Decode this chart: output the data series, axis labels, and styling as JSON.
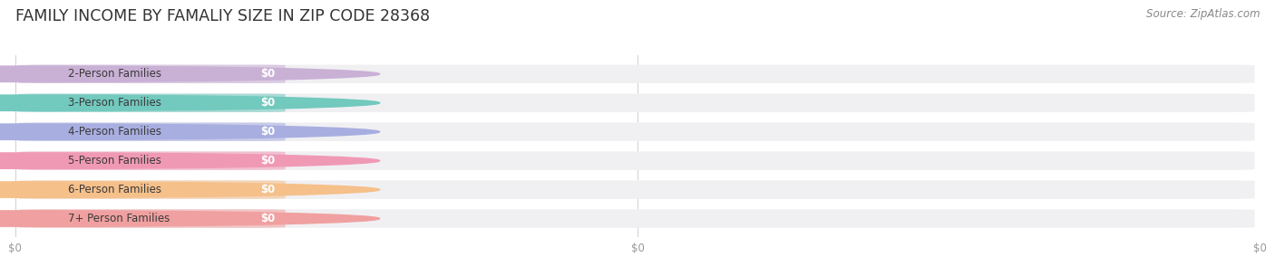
{
  "title": "FAMILY INCOME BY FAMALIY SIZE IN ZIP CODE 28368",
  "source_text": "Source: ZipAtlas.com",
  "categories": [
    "2-Person Families",
    "3-Person Families",
    "4-Person Families",
    "5-Person Families",
    "6-Person Families",
    "7+ Person Families"
  ],
  "values": [
    0,
    0,
    0,
    0,
    0,
    0
  ],
  "bar_colors": [
    "#c9b0d5",
    "#72c9be",
    "#a8aee0",
    "#f099b5",
    "#f5c08a",
    "#f0a0a0"
  ],
  "bg_color": "#ffffff",
  "bar_bg_color": "#f0f0f3",
  "title_fontsize": 12.5,
  "label_fontsize": 8.5,
  "value_fontsize": 8.5,
  "source_fontsize": 8.5,
  "tick_label": "$0"
}
